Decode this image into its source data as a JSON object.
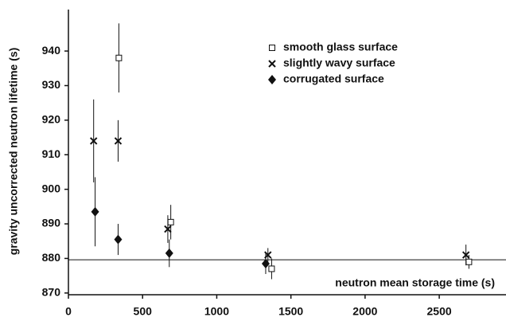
{
  "chart_data": {
    "type": "scatter",
    "xlabel": "neutron mean storage time (s)",
    "ylabel": "gravity uncorrected neutron lifetime (s)",
    "xlim": [
      0,
      2950
    ],
    "xticks": [
      0,
      500,
      1000,
      1500,
      2000,
      2500
    ],
    "ylim": [
      869.5,
      952
    ],
    "yticks": [
      870,
      880,
      890,
      900,
      910,
      920,
      930,
      940
    ],
    "hline": 879.6,
    "color": "#111111",
    "legend": "upper right",
    "series": [
      {
        "name": "smooth glass surface",
        "marker": "square",
        "x": [
          340,
          690,
          1370,
          2700
        ],
        "values": [
          938,
          890.5,
          877,
          879
        ],
        "errors": [
          10,
          5,
          3,
          2
        ]
      },
      {
        "name": "slightly wavy surface",
        "marker": "cross",
        "x": [
          170,
          335,
          670,
          1345,
          2680
        ],
        "values": [
          914,
          914,
          888.5,
          881,
          881
        ],
        "errors": [
          12,
          6,
          4,
          2,
          3
        ]
      },
      {
        "name": "corrugated surface",
        "marker": "diamond",
        "x": [
          180,
          335,
          680,
          1330
        ],
        "values": [
          893.5,
          885.5,
          881.5,
          878.5
        ],
        "errors": [
          10,
          4.5,
          4,
          3
        ]
      }
    ]
  }
}
